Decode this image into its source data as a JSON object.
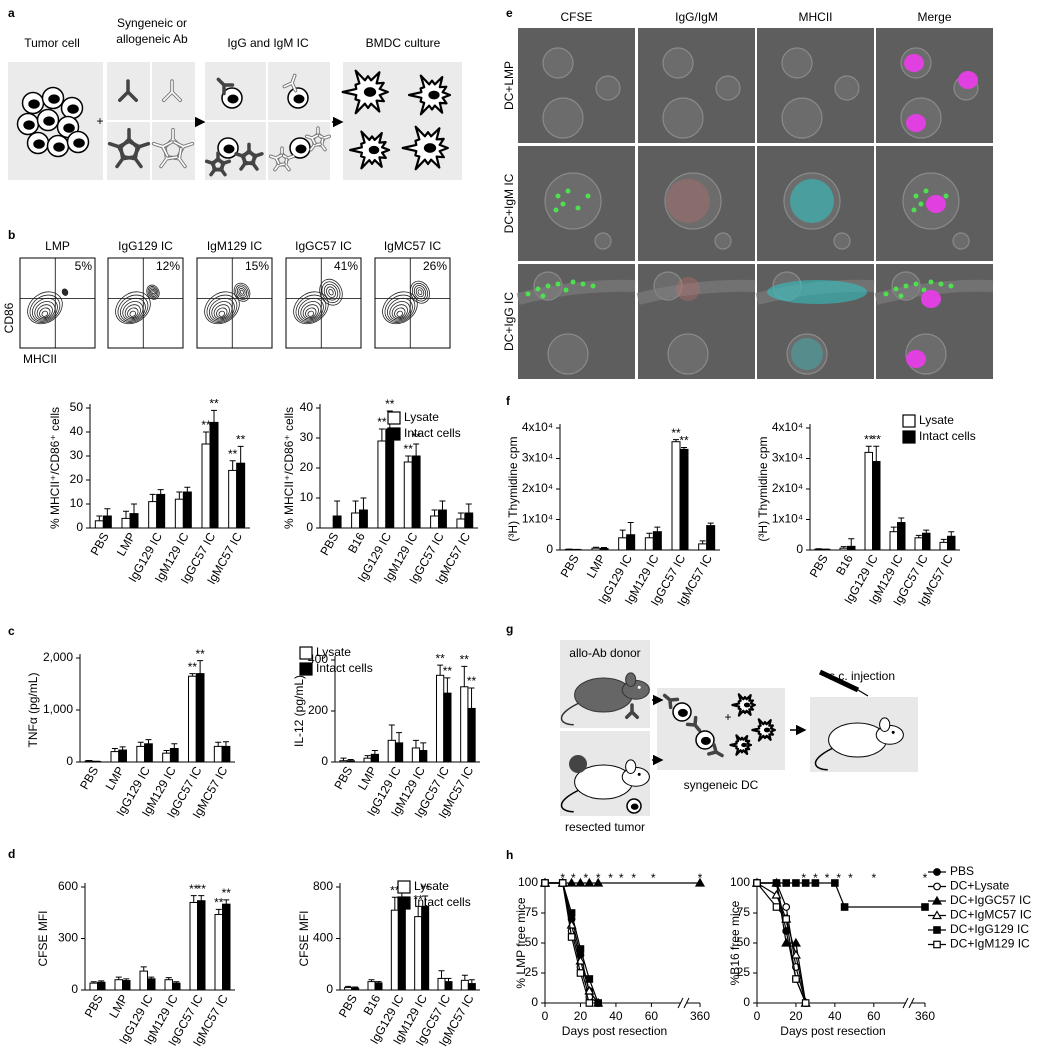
{
  "panel_labels": [
    "a",
    "b",
    "c",
    "d",
    "e",
    "f",
    "g",
    "h"
  ],
  "diagram_a": {
    "tumor": "Tumor cell",
    "antibody": [
      "Syngeneic or",
      "allogeneic Ab"
    ],
    "ic": "IgG and IgM IC",
    "culture": "BMDC culture",
    "plus": "+"
  },
  "flow_b": {
    "x_label": "MHCII",
    "y_label": "CD86",
    "plots": [
      {
        "title": "LMP",
        "percent": "5%"
      },
      {
        "title": "IgG129 IC",
        "percent": "12%"
      },
      {
        "title": "IgM129 IC",
        "percent": "15%"
      },
      {
        "title": "IgGC57 IC",
        "percent": "41%"
      },
      {
        "title": "IgMC57 IC",
        "percent": "26%"
      }
    ]
  },
  "microscopy_e": {
    "columns": [
      "CFSE",
      "IgG/IgM",
      "MHCII",
      "Merge"
    ],
    "rows": [
      "DC+LMP",
      "DC+IgM IC",
      "DC+IgG IC"
    ]
  },
  "diagram_g": {
    "donor": "allo-Ab donor",
    "tumor": "resected tumor",
    "dc": "syngeneic DC",
    "injection": "s.c. injection",
    "plus": "+"
  },
  "chart_data": [
    {
      "type": "bar",
      "y_label": "% MHCII⁺/CD86⁺ cells",
      "categories": [
        "PBS",
        "LMP",
        "IgG129 IC",
        "IgM129 IC",
        "IgGC57 IC",
        "IgMC57 IC"
      ],
      "ylim": [
        0,
        50
      ],
      "yticks": [
        0,
        10,
        20,
        30,
        40,
        50
      ],
      "series": [
        {
          "name": "Lysate",
          "color": "#ffffff",
          "values": [
            3,
            4,
            11,
            12,
            35,
            24
          ],
          "errors": [
            2,
            3,
            3,
            3,
            5,
            4
          ],
          "stars": [
            null,
            null,
            null,
            null,
            "**",
            "**"
          ]
        },
        {
          "name": "Intact cells",
          "color": "#000000",
          "values": [
            5,
            6,
            14,
            15,
            44,
            27
          ],
          "errors": [
            3,
            4,
            2,
            2,
            5,
            7
          ],
          "stars": [
            null,
            null,
            null,
            null,
            "**",
            "**"
          ]
        }
      ]
    },
    {
      "type": "bar",
      "y_label": "% MHCII⁺/CD86⁺ cells",
      "categories": [
        "PBS",
        "B16",
        "IgG129 IC",
        "IgM129 IC",
        "IgGC57 IC",
        "IgMC57 IC"
      ],
      "ylim": [
        0,
        40
      ],
      "yticks": [
        0,
        10,
        20,
        30,
        40
      ],
      "legend": "upper right",
      "series": [
        {
          "name": "Lysate",
          "color": "#ffffff",
          "values": [
            0,
            5,
            29,
            22,
            4,
            3
          ],
          "errors": [
            null,
            4,
            4,
            2,
            2,
            2
          ],
          "stars": [
            null,
            null,
            "**",
            "**",
            null,
            null
          ]
        },
        {
          "name": "Intact cells",
          "color": "#000000",
          "values": [
            4,
            6,
            33,
            24,
            6,
            5
          ],
          "errors": [
            5,
            4,
            6,
            4,
            3,
            3
          ],
          "stars": [
            null,
            null,
            "**",
            "**",
            null,
            null
          ]
        }
      ]
    },
    {
      "type": "bar",
      "y_label": "TNFα (pg/mL)",
      "categories": [
        "PBS",
        "LMP",
        "IgG129 IC",
        "IgM129 IC",
        "IgGC57 IC",
        "IgMC57 IC"
      ],
      "ylim": [
        0,
        2000
      ],
      "yticks": [
        0,
        {
          "value": 1000,
          "label": "1,000"
        },
        {
          "value": 2000,
          "label": "2,000"
        }
      ],
      "series": [
        {
          "name": "Lysate",
          "color": "#ffffff",
          "values": [
            20,
            200,
            300,
            170,
            1650,
            300
          ],
          "errors": [
            10,
            60,
            80,
            50,
            50,
            80
          ],
          "stars": [
            null,
            null,
            null,
            null,
            "**",
            null
          ]
        },
        {
          "name": "Intact cells",
          "color": "#000000",
          "values": [
            10,
            230,
            350,
            260,
            1700,
            300
          ],
          "errors": [
            5,
            60,
            80,
            90,
            250,
            90
          ],
          "stars": [
            null,
            null,
            null,
            null,
            "**",
            null
          ]
        }
      ]
    },
    {
      "type": "bar",
      "y_label": "IL-12 (pg/mL)",
      "categories": [
        "PBS",
        "LMP",
        "IgG129 IC",
        "IgM129 IC",
        "IgGC57 IC",
        "IgMC57 IC"
      ],
      "ylim": [
        0,
        400
      ],
      "yticks": [
        0,
        200,
        400
      ],
      "legend": "upper left",
      "series": [
        {
          "name": "Lysate",
          "color": "#ffffff",
          "values": [
            5,
            15,
            85,
            55,
            340,
            295
          ],
          "errors": [
            10,
            10,
            60,
            30,
            40,
            80
          ],
          "stars": [
            null,
            null,
            null,
            null,
            "**",
            "**"
          ]
        },
        {
          "name": "Intact cells",
          "color": "#000000",
          "values": [
            5,
            30,
            75,
            45,
            270,
            210
          ],
          "errors": [
            5,
            15,
            40,
            30,
            60,
            80
          ],
          "stars": [
            null,
            null,
            null,
            null,
            "**",
            "**"
          ]
        }
      ]
    },
    {
      "type": "bar",
      "y_label": "CFSE MFI",
      "categories": [
        "PBS",
        "LMP",
        "IgG129 IC",
        "IgM129 IC",
        "IgGC57 IC",
        "IgMC57 IC"
      ],
      "ylim": [
        0,
        600
      ],
      "yticks": [
        0,
        300,
        600
      ],
      "series": [
        {
          "name": "Lysate",
          "color": "#ffffff",
          "values": [
            40,
            60,
            110,
            60,
            510,
            440
          ],
          "errors": [
            8,
            15,
            25,
            12,
            40,
            30
          ],
          "stars": [
            null,
            null,
            null,
            null,
            "**",
            "**"
          ]
        },
        {
          "name": "Intact cells",
          "color": "#000000",
          "values": [
            45,
            55,
            65,
            40,
            520,
            500
          ],
          "errors": [
            8,
            10,
            10,
            8,
            30,
            25
          ],
          "stars": [
            null,
            null,
            null,
            null,
            "**",
            "**"
          ]
        }
      ]
    },
    {
      "type": "bar",
      "y_label": "CFSE MFI",
      "categories": [
        "PBS",
        "B16",
        "IgG129 IC",
        "IgM129 IC",
        "IgGC57 IC",
        "IgMC57 IC"
      ],
      "ylim": [
        0,
        800
      ],
      "yticks": [
        0,
        400,
        800
      ],
      "legend": "upper right",
      "series": [
        {
          "name": "Lysate",
          "color": "#ffffff",
          "values": [
            20,
            65,
            620,
            570,
            90,
            75
          ],
          "errors": [
            8,
            15,
            100,
            80,
            60,
            40
          ],
          "stars": [
            null,
            null,
            "**",
            "**",
            null,
            null
          ]
        },
        {
          "name": "Intact cells",
          "color": "#000000",
          "values": [
            15,
            55,
            700,
            650,
            65,
            50
          ],
          "errors": [
            8,
            10,
            60,
            80,
            25,
            30
          ],
          "stars": [
            null,
            null,
            "**",
            "**",
            null,
            null
          ]
        }
      ]
    },
    {
      "type": "bar",
      "y_label": "(³H) Thymidine cpm",
      "categories": [
        "PBS",
        "LMP",
        "IgG129 IC",
        "IgM129 IC",
        "IgGC57 IC",
        "IgMC57 IC"
      ],
      "ylim": [
        0,
        40000
      ],
      "yticks": [
        0,
        {
          "value": 10000,
          "label": "1x10⁴"
        },
        {
          "value": 20000,
          "label": "2x10⁴"
        },
        {
          "value": 30000,
          "label": "3x10⁴"
        },
        {
          "value": 40000,
          "label": "4x10⁴"
        }
      ],
      "series": [
        {
          "name": "Lysate",
          "color": "#ffffff",
          "values": [
            200,
            600,
            4000,
            4000,
            35500,
            2000
          ],
          "errors": [
            100,
            300,
            2500,
            1500,
            700,
            1000
          ],
          "stars": [
            null,
            null,
            null,
            null,
            "**",
            null
          ]
        },
        {
          "name": "Intact cells",
          "color": "#000000",
          "values": [
            100,
            500,
            5000,
            6000,
            33000,
            8000
          ],
          "errors": [
            100,
            300,
            4000,
            1500,
            600,
            800
          ],
          "stars": [
            null,
            null,
            null,
            null,
            "**",
            null
          ]
        }
      ]
    },
    {
      "type": "bar",
      "y_label": "(³H) Thymidine cpm",
      "categories": [
        "PBS",
        "B16",
        "IgG129 IC",
        "IgM129 IC",
        "IgGC57 IC",
        "IgMC57 IC"
      ],
      "ylim": [
        0,
        40000
      ],
      "yticks": [
        0,
        {
          "value": 10000,
          "label": "1x10⁴"
        },
        {
          "value": 20000,
          "label": "2x10⁴"
        },
        {
          "value": 30000,
          "label": "3x10⁴"
        },
        {
          "value": 40000,
          "label": "4x10⁴"
        }
      ],
      "legend": "upper right",
      "series": [
        {
          "name": "Lysate",
          "color": "#ffffff",
          "values": [
            300,
            600,
            32000,
            6000,
            4000,
            2500
          ],
          "errors": [
            100,
            500,
            2000,
            1500,
            800,
            1000
          ],
          "stars": [
            null,
            null,
            "**",
            null,
            null,
            null
          ]
        },
        {
          "name": "Intact cells",
          "color": "#000000",
          "values": [
            200,
            1200,
            29000,
            9000,
            5500,
            4500
          ],
          "errors": [
            100,
            2500,
            5000,
            1500,
            1000,
            1500
          ],
          "stars": [
            null,
            null,
            "**",
            null,
            null,
            null
          ]
        }
      ]
    },
    {
      "type": "line",
      "y_label": "% LMP free mice",
      "x_label": "Days post resection",
      "x": [
        0,
        10,
        15,
        20,
        25,
        30,
        360
      ],
      "xlim": [
        0,
        360
      ],
      "xticks": [
        0,
        20,
        40,
        60,
        360
      ],
      "ylim": [
        0,
        100
      ],
      "yticks": [
        0,
        25,
        50,
        75,
        100
      ],
      "series": [
        {
          "name": "PBS",
          "color": "#000000",
          "marker": "circle",
          "filled": true,
          "values": [
            100,
            100,
            70,
            40,
            10,
            0,
            null
          ]
        },
        {
          "name": "DC+Lysate",
          "color": "#000000",
          "marker": "circle",
          "filled": false,
          "values": [
            100,
            100,
            60,
            30,
            5,
            0,
            null
          ]
        },
        {
          "name": "DC+IgGC57 IC",
          "color": "#000000",
          "marker": "triangle",
          "filled": true,
          "values": [
            100,
            100,
            100,
            100,
            100,
            100,
            100
          ]
        },
        {
          "name": "DC+IgMC57 IC",
          "color": "#000000",
          "marker": "triangle",
          "filled": false,
          "values": [
            100,
            100,
            65,
            35,
            10,
            0,
            null
          ]
        },
        {
          "name": "DC+IgG129 IC",
          "color": "#000000",
          "marker": "square",
          "filled": true,
          "values": [
            100,
            100,
            75,
            45,
            20,
            0,
            null
          ]
        },
        {
          "name": "DC+IgM129 IC",
          "color": "#000000",
          "marker": "square",
          "filled": false,
          "values": [
            100,
            100,
            55,
            25,
            0,
            null,
            null
          ]
        }
      ],
      "annotations": [
        {
          "text": "*",
          "x": 10
        },
        {
          "text": "*",
          "x": 16
        },
        {
          "text": "*",
          "x": 23
        },
        {
          "text": "*",
          "x": 30
        },
        {
          "text": "*",
          "x": 37
        },
        {
          "text": "*",
          "x": 43
        },
        {
          "text": "*",
          "x": 50
        },
        {
          "text": "*",
          "x": 61
        },
        {
          "text": "*",
          "x": 360
        }
      ]
    },
    {
      "type": "line",
      "y_label": "%B16 free mice",
      "x_label": "Days post resection",
      "x": [
        0,
        10,
        15,
        20,
        25,
        30,
        40,
        45,
        360
      ],
      "xlim": [
        0,
        360
      ],
      "xticks": [
        0,
        20,
        40,
        60,
        360
      ],
      "ylim": [
        0,
        100
      ],
      "yticks": [
        0,
        25,
        50,
        75,
        100
      ],
      "legend": "right",
      "series": [
        {
          "name": "PBS",
          "color": "#000000",
          "marker": "circle",
          "filled": true,
          "values": [
            100,
            100,
            60,
            20,
            0,
            null,
            null,
            null,
            null
          ]
        },
        {
          "name": "DC+Lysate",
          "color": "#000000",
          "marker": "circle",
          "filled": false,
          "values": [
            100,
            100,
            80,
            30,
            0,
            null,
            null,
            null,
            null
          ]
        },
        {
          "name": "DC+IgGC57 IC",
          "color": "#000000",
          "marker": "triangle",
          "filled": true,
          "values": [
            100,
            100,
            50,
            50,
            0,
            null,
            null,
            null,
            null
          ]
        },
        {
          "name": "DC+IgMC57 IC",
          "color": "#000000",
          "marker": "triangle",
          "filled": false,
          "values": [
            100,
            90,
            70,
            40,
            0,
            null,
            null,
            null,
            null
          ]
        },
        {
          "name": "DC+IgG129 IC",
          "color": "#000000",
          "marker": "square",
          "filled": true,
          "values": [
            100,
            100,
            100,
            100,
            100,
            100,
            100,
            80,
            80
          ]
        },
        {
          "name": "DC+IgM129 IC",
          "color": "#000000",
          "marker": "square",
          "filled": false,
          "values": [
            100,
            80,
            70,
            20,
            0,
            null,
            null,
            null,
            null
          ]
        }
      ],
      "annotations": [
        {
          "text": "*",
          "x": 24
        },
        {
          "text": "*",
          "x": 30
        },
        {
          "text": "*",
          "x": 36
        },
        {
          "text": "*",
          "x": 42
        },
        {
          "text": "*",
          "x": 48
        },
        {
          "text": "*",
          "x": 60
        },
        {
          "text": "*",
          "x": 360
        }
      ]
    }
  ]
}
